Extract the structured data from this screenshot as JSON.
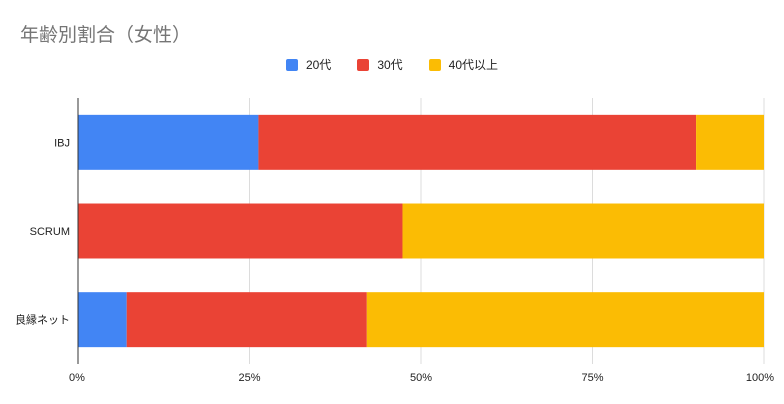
{
  "chart_data": {
    "type": "bar",
    "orientation": "horizontal",
    "stacked": true,
    "title": "年齢別割合（女性）",
    "categories": [
      "IBJ",
      "SCRUM",
      "良縁ネット"
    ],
    "series": [
      {
        "name": "20代",
        "color": "#4285f4",
        "values": [
          26.3,
          0,
          7.1
        ]
      },
      {
        "name": "30代",
        "color": "#ea4335",
        "values": [
          63.8,
          47.3,
          35.0
        ]
      },
      {
        "name": "40代以上",
        "color": "#fbbc04",
        "values": [
          9.9,
          52.7,
          57.9
        ]
      }
    ],
    "x_ticks": [
      "0%",
      "25%",
      "50%",
      "75%",
      "100%"
    ],
    "xlim": [
      0,
      100
    ],
    "grid": true,
    "legend_position": "top"
  }
}
